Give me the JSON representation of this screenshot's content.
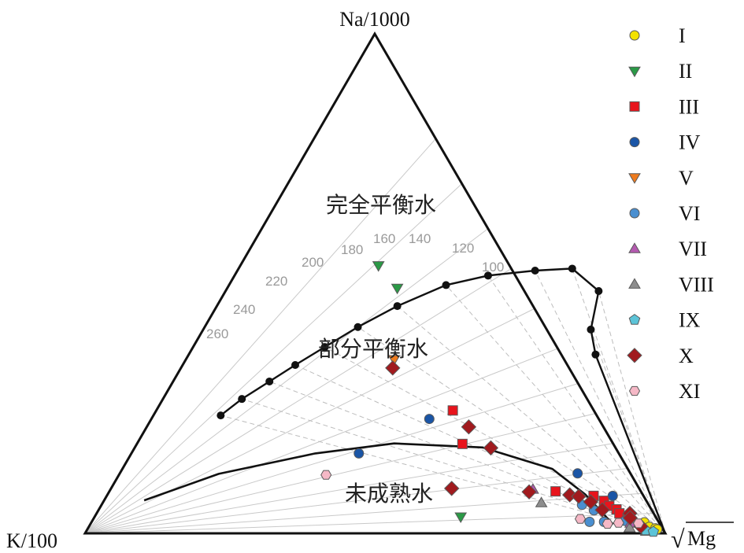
{
  "chart_data": {
    "type": "scatter",
    "subtype": "ternary",
    "vertices": {
      "top": "Na/1000",
      "left": "K/100",
      "right_radical": "√",
      "right_text": "Mg"
    },
    "regions": {
      "full": "完全平衡水",
      "partial": "部分平衡水",
      "immature": "未成熟水"
    },
    "temperature_labels": [
      "260",
      "240",
      "220",
      "200",
      "180",
      "160",
      "140",
      "120",
      "100"
    ],
    "legend": [
      {
        "name": "I",
        "shape": "circle",
        "color": "#f3e200"
      },
      {
        "name": "II",
        "shape": "triangle-down",
        "color": "#2a9a46"
      },
      {
        "name": "III",
        "shape": "square",
        "color": "#e8141c"
      },
      {
        "name": "IV",
        "shape": "circle",
        "color": "#1a55a6"
      },
      {
        "name": "V",
        "shape": "triangle-down",
        "color": "#ee7b1e"
      },
      {
        "name": "VI",
        "shape": "circle",
        "color": "#4a8fd0"
      },
      {
        "name": "VII",
        "shape": "triangle-up",
        "color": "#b45ab0"
      },
      {
        "name": "VIII",
        "shape": "triangle-up",
        "color": "#8d8d8d"
      },
      {
        "name": "IX",
        "shape": "pentagon",
        "color": "#5cc4d8"
      },
      {
        "name": "X",
        "shape": "diamond",
        "color": "#a11a1e"
      },
      {
        "name": "XI",
        "shape": "hexagon",
        "color": "#f5b8c6"
      }
    ],
    "series": [
      {
        "name": "I",
        "values": [
          [
            0.022,
            0.953
          ],
          [
            0.013,
            0.966
          ],
          [
            0.01,
            0.978
          ],
          [
            0.008,
            0.982
          ]
        ]
      },
      {
        "name": "II",
        "values": [
          [
            0.536,
            0.238
          ],
          [
            0.491,
            0.293
          ],
          [
            0.033,
            0.631
          ]
        ]
      },
      {
        "name": "III",
        "values": [
          [
            0.246,
            0.511
          ],
          [
            0.179,
            0.561
          ],
          [
            0.084,
            0.769
          ],
          [
            0.075,
            0.839
          ],
          [
            0.065,
            0.862
          ],
          [
            0.055,
            0.876
          ],
          [
            0.048,
            0.892
          ],
          [
            0.04,
            0.901
          ],
          [
            0.028,
            0.921
          ]
        ]
      },
      {
        "name": "IV",
        "values": [
          [
            0.229,
            0.479
          ],
          [
            0.16,
            0.392
          ],
          [
            0.12,
            0.789
          ],
          [
            0.075,
            0.872
          ]
        ]
      },
      {
        "name": "V",
        "values": [
          [
            0.348,
            0.359
          ]
        ]
      },
      {
        "name": "VI",
        "values": [
          [
            0.057,
            0.828
          ],
          [
            0.046,
            0.854
          ],
          [
            0.023,
            0.858
          ],
          [
            0.023,
            0.883
          ],
          [
            0.025,
            0.918
          ]
        ]
      },
      {
        "name": "VII",
        "values": [
          [
            0.088,
            0.728
          ],
          [
            0.02,
            0.93
          ]
        ]
      },
      {
        "name": "VIII",
        "values": [
          [
            0.061,
            0.756
          ],
          [
            0.011,
            0.933
          ],
          [
            0.004,
            0.965
          ]
        ]
      },
      {
        "name": "IX",
        "values": [
          [
            0.006,
            0.963
          ],
          [
            0.003,
            0.978
          ]
        ]
      },
      {
        "name": "X",
        "values": [
          [
            0.331,
            0.365
          ],
          [
            0.213,
            0.555
          ],
          [
            0.171,
            0.614
          ],
          [
            0.09,
            0.587
          ],
          [
            0.083,
            0.724
          ],
          [
            0.077,
            0.797
          ],
          [
            0.074,
            0.814
          ],
          [
            0.063,
            0.84
          ],
          [
            0.047,
            0.868
          ],
          [
            0.04,
            0.919
          ],
          [
            0.031,
            0.924
          ],
          [
            0.014,
            0.951
          ]
        ]
      },
      {
        "name": "XI",
        "values": [
          [
            0.117,
            0.357
          ],
          [
            0.029,
            0.839
          ],
          [
            0.019,
            0.891
          ],
          [
            0.021,
            0.909
          ],
          [
            0.02,
            0.944
          ]
        ]
      }
    ]
  }
}
